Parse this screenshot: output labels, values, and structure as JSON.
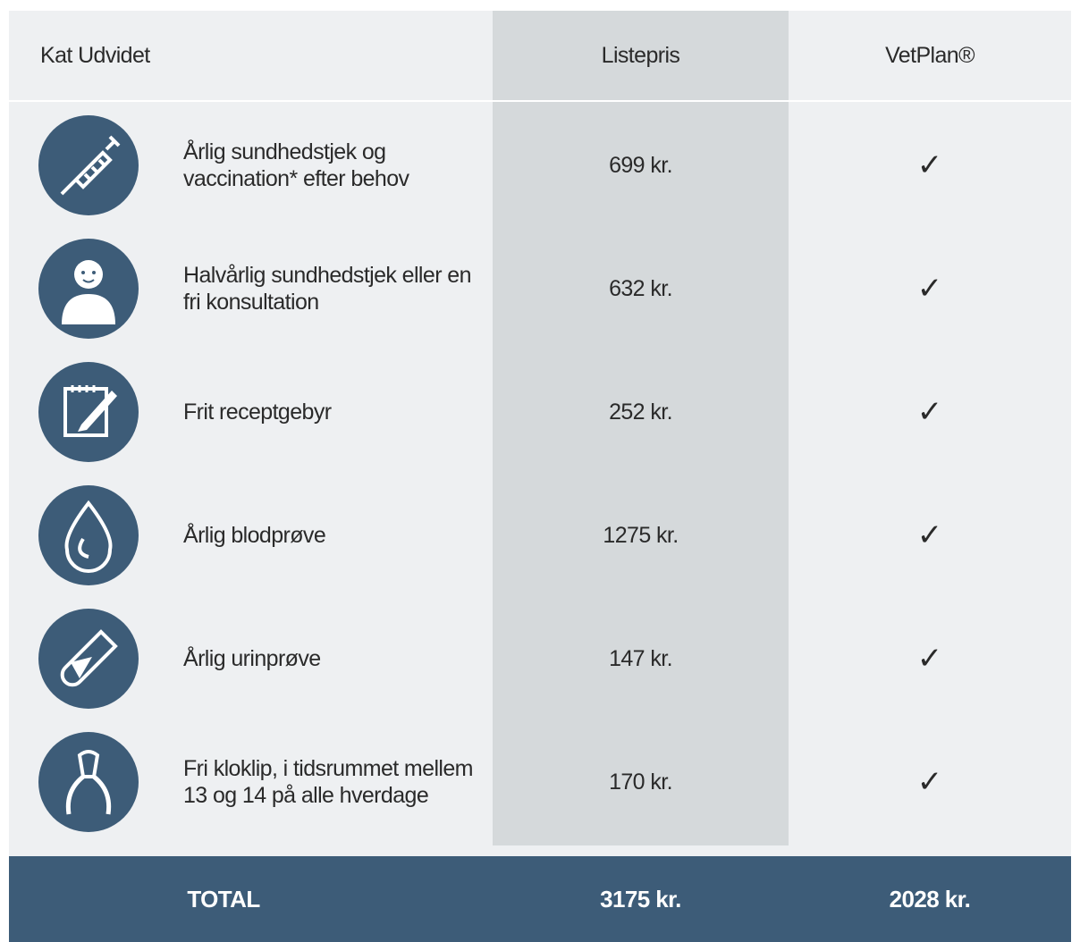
{
  "header": {
    "title": "Kat Udvidet",
    "price": "Listepris",
    "plan": "VetPlan®"
  },
  "rows": [
    {
      "description": "Årlig sundhedstjek og vaccination* efter behov",
      "price": "699 kr.",
      "vetplan": "✓"
    },
    {
      "description": "Halvårlig sundhedstjek eller en fri konsultation",
      "price": "632 kr.",
      "vetplan": "✓"
    },
    {
      "description": "Frit receptgebyr",
      "price": "252 kr.",
      "vetplan": "✓"
    },
    {
      "description": "Årlig blodprøve",
      "price": "1275 kr.",
      "vetplan": "✓"
    },
    {
      "description": "Årlig urinprøve",
      "price": "147 kr.",
      "vetplan": "✓"
    },
    {
      "description": "Fri kloklip,  i tidsrummet mellem 13 og 14 på alle hverdage",
      "price": "170 kr.",
      "vetplan": "✓"
    }
  ],
  "total": {
    "label": "TOTAL",
    "price": "3175 kr.",
    "plan": "2028 kr."
  }
}
